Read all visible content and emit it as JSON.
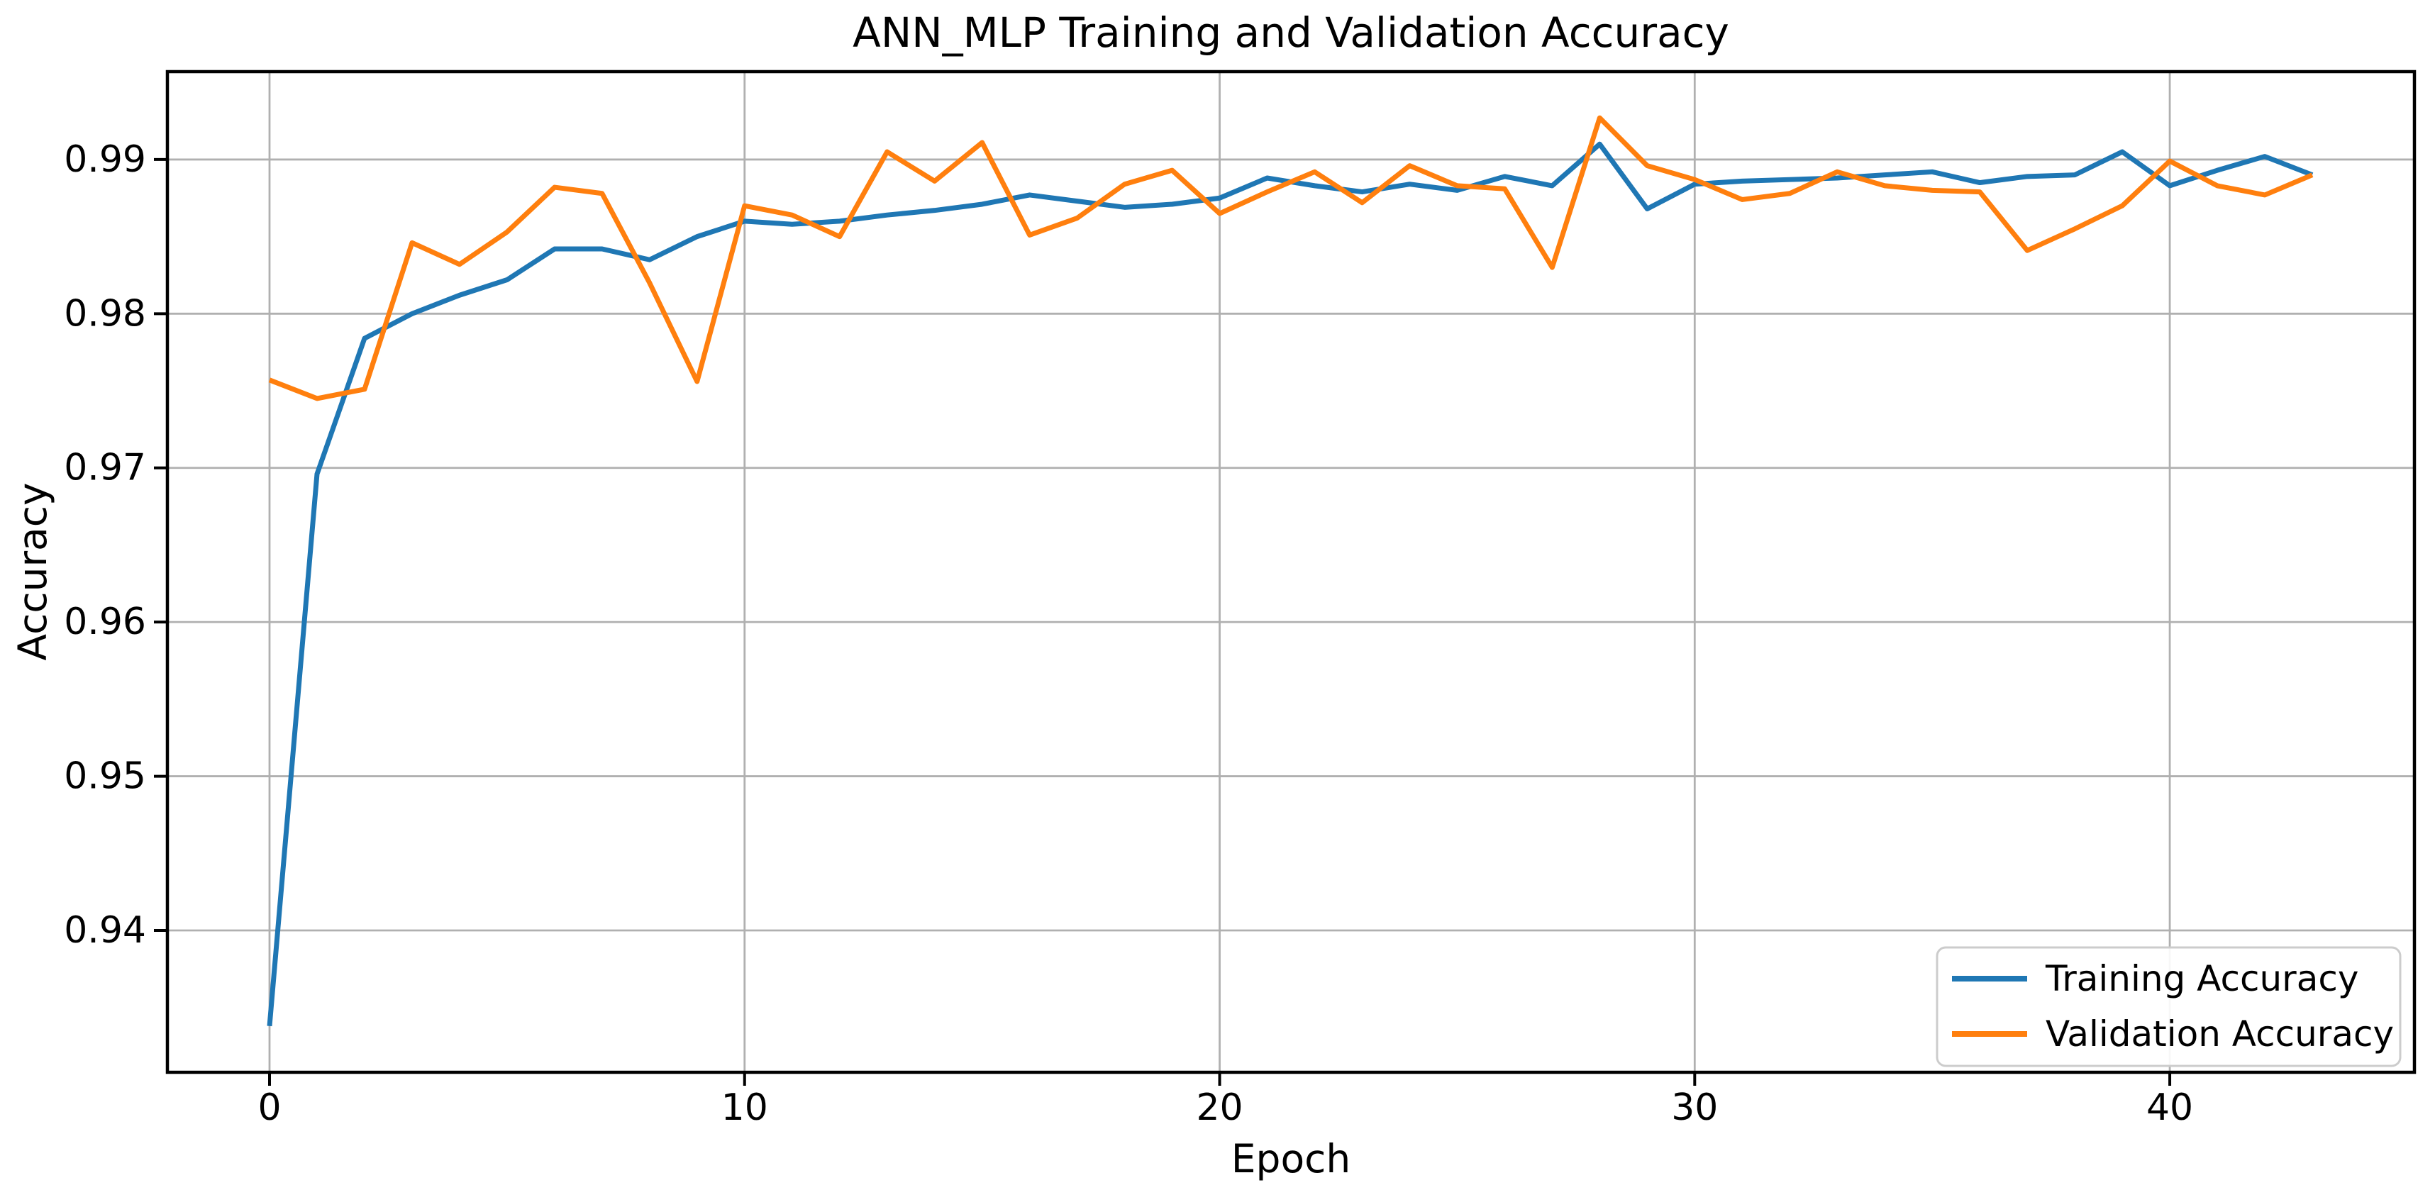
{
  "figure": {
    "background": "#ffffff"
  },
  "chart_data": {
    "type": "line",
    "title": "ANN_MLP Training and Validation Accuracy",
    "xlabel": "Epoch",
    "ylabel": "Accuracy",
    "grid": true,
    "legend_position": "lower right",
    "xlim": [
      -2.15,
      45.15
    ],
    "ylim": [
      0.9308,
      0.9957
    ],
    "xticks": [
      0,
      10,
      20,
      30,
      40
    ],
    "yticks": [
      0.94,
      0.95,
      0.96,
      0.97,
      0.98,
      0.99
    ],
    "grid_color": "#b0b0b0",
    "spine_color": "#000000",
    "x": [
      0,
      1,
      2,
      3,
      4,
      5,
      6,
      7,
      8,
      9,
      10,
      11,
      12,
      13,
      14,
      15,
      16,
      17,
      18,
      19,
      20,
      21,
      22,
      23,
      24,
      25,
      26,
      27,
      28,
      29,
      30,
      31,
      32,
      33,
      34,
      35,
      36,
      37,
      38,
      39,
      40,
      41,
      42,
      43
    ],
    "series": [
      {
        "name": "Training Accuracy",
        "color": "#1f77b4",
        "values": [
          0.9338,
          0.9696,
          0.9784,
          0.98,
          0.9812,
          0.9822,
          0.9842,
          0.9842,
          0.9835,
          0.985,
          0.986,
          0.9858,
          0.986,
          0.9864,
          0.9867,
          0.9871,
          0.9877,
          0.9873,
          0.9869,
          0.9871,
          0.9875,
          0.9888,
          0.9883,
          0.9879,
          0.9884,
          0.988,
          0.9889,
          0.9883,
          0.991,
          0.9868,
          0.9884,
          0.9886,
          0.9887,
          0.9888,
          0.989,
          0.9892,
          0.9885,
          0.9889,
          0.989,
          0.9905,
          0.9883,
          0.9893,
          0.9902,
          0.989
        ]
      },
      {
        "name": "Validation Accuracy",
        "color": "#ff7f0e",
        "values": [
          0.9757,
          0.9745,
          0.9751,
          0.9846,
          0.9832,
          0.9853,
          0.9882,
          0.9878,
          0.982,
          0.9756,
          0.987,
          0.9864,
          0.985,
          0.9905,
          0.9886,
          0.9911,
          0.9851,
          0.9862,
          0.9884,
          0.9893,
          0.9865,
          0.9879,
          0.9892,
          0.9872,
          0.9896,
          0.9883,
          0.9881,
          0.983,
          0.9927,
          0.9896,
          0.9887,
          0.9874,
          0.9878,
          0.9892,
          0.9883,
          0.988,
          0.9879,
          0.9841,
          0.9855,
          0.987,
          0.9899,
          0.9883,
          0.9877,
          0.989
        ]
      }
    ]
  }
}
